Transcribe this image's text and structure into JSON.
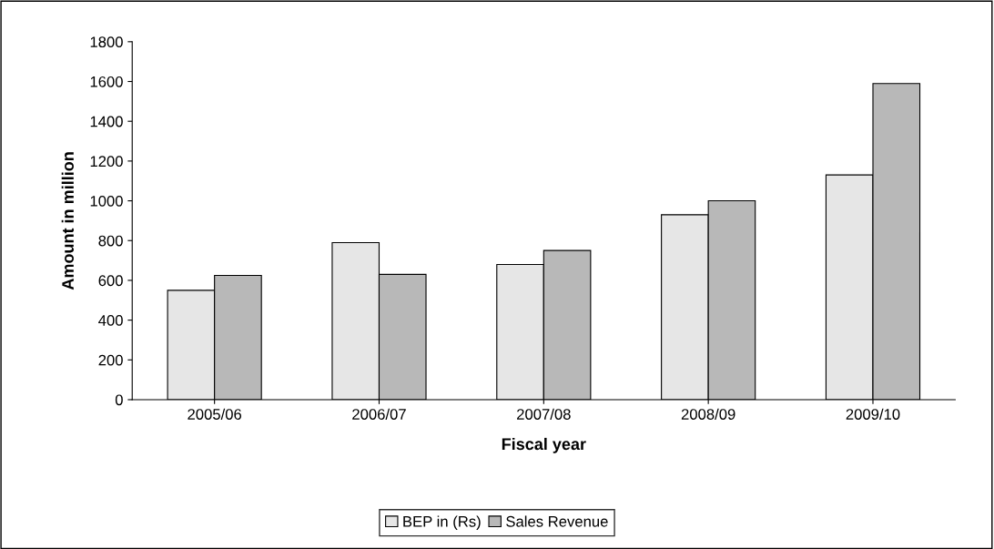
{
  "chart_data": {
    "type": "bar",
    "xlabel": "Fiscal year",
    "ylabel": "Amount in million",
    "categories": [
      "2005/06",
      "2006/07",
      "2007/08",
      "2008/09",
      "2009/10"
    ],
    "series": [
      {
        "name": "BEP in (Rs)",
        "color": "#e6e6e6",
        "values": [
          550,
          790,
          680,
          930,
          1130
        ]
      },
      {
        "name": "Sales Revenue",
        "color": "#b8b8b8",
        "values": [
          625,
          630,
          750,
          1000,
          1590
        ]
      }
    ],
    "ylim": [
      0,
      1800
    ],
    "yticks": [
      0,
      200,
      400,
      600,
      800,
      1000,
      1200,
      1400,
      1600,
      1800
    ],
    "grid": false,
    "legend": "bottom"
  }
}
